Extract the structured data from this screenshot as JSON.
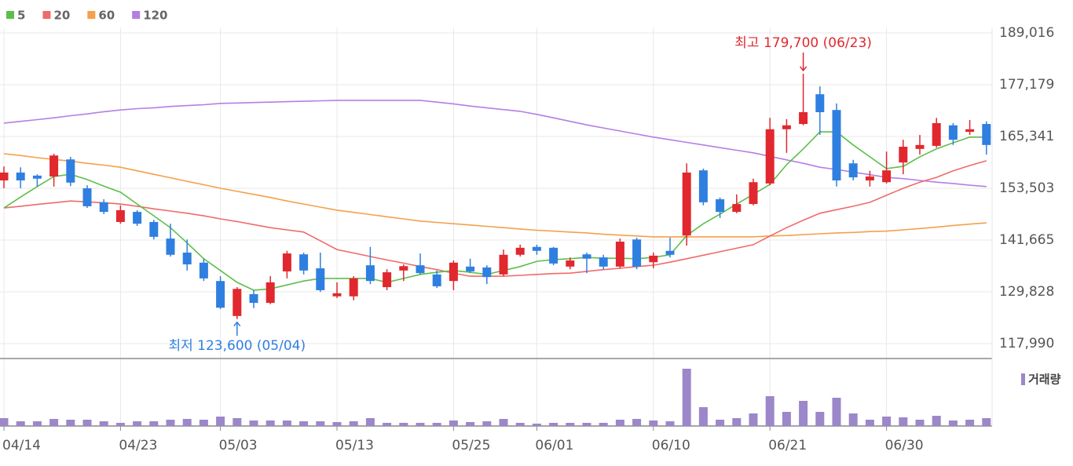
{
  "chart_data": {
    "type": "candlestick",
    "categories": [
      "04/14",
      null,
      null,
      null,
      null,
      null,
      null,
      "04/23",
      null,
      null,
      null,
      null,
      null,
      "05/03",
      null,
      null,
      null,
      null,
      null,
      null,
      "05/13",
      null,
      null,
      null,
      null,
      null,
      null,
      "05/25",
      null,
      null,
      null,
      null,
      "06/01",
      null,
      null,
      null,
      null,
      null,
      null,
      "06/10",
      null,
      null,
      null,
      null,
      null,
      null,
      "06/21",
      null,
      null,
      null,
      null,
      null,
      null,
      "06/30",
      null,
      null,
      null,
      null,
      null,
      null
    ],
    "open": [
      155300,
      157100,
      156400,
      156200,
      160100,
      153500,
      150300,
      145800,
      148100,
      145800,
      142000,
      138800,
      136500,
      132300,
      124300,
      129300,
      127300,
      134500,
      138400,
      135200,
      128800,
      128800,
      135900,
      130900,
      134700,
      135900,
      133800,
      132300,
      135600,
      135400,
      133800,
      138300,
      140100,
      139900,
      135600,
      138400,
      137700,
      135600,
      141800,
      136600,
      139200,
      142700,
      157600,
      151000,
      148100,
      149900,
      154600,
      167000,
      168200,
      175000,
      171400,
      159200,
      155300,
      154900,
      159400,
      162500,
      163200,
      167900,
      166400,
      168200
    ],
    "high": [
      158500,
      158300,
      156700,
      161400,
      160700,
      154200,
      151000,
      149600,
      148500,
      146300,
      145400,
      141800,
      137400,
      133400,
      130900,
      130200,
      133400,
      139200,
      138800,
      138800,
      132000,
      133400,
      140100,
      135000,
      136100,
      138600,
      134700,
      137000,
      137400,
      135900,
      139500,
      140600,
      140600,
      140100,
      137700,
      138800,
      138300,
      142000,
      142200,
      138800,
      142200,
      159200,
      158000,
      151400,
      152100,
      155700,
      169600,
      169300,
      179700,
      176800,
      172900,
      160000,
      157500,
      161900,
      164600,
      165700,
      169600,
      168400,
      169100,
      168800
    ],
    "low": [
      153500,
      153500,
      153900,
      153900,
      154000,
      149000,
      147600,
      145400,
      144900,
      141800,
      137900,
      134700,
      132300,
      125900,
      123600,
      126100,
      127000,
      132900,
      133800,
      129800,
      128400,
      127900,
      131600,
      130200,
      132300,
      133800,
      130700,
      130200,
      134100,
      131600,
      133400,
      137900,
      138300,
      135900,
      135000,
      134100,
      135000,
      135200,
      135000,
      135200,
      137700,
      140400,
      149600,
      146700,
      147800,
      149600,
      154200,
      161600,
      167900,
      165700,
      153900,
      155300,
      153900,
      154600,
      156700,
      161200,
      162800,
      163400,
      165700,
      161200
    ],
    "close": [
      157100,
      155300,
      155700,
      161000,
      154800,
      149400,
      148100,
      148500,
      145400,
      142400,
      138300,
      136100,
      132900,
      126200,
      130500,
      127300,
      132000,
      138600,
      134700,
      130200,
      129500,
      132900,
      132300,
      134300,
      135700,
      134100,
      131100,
      136500,
      134500,
      133200,
      138300,
      139900,
      139200,
      136300,
      137000,
      137400,
      135600,
      141300,
      135600,
      138100,
      138300,
      157100,
      150300,
      148100,
      149900,
      154900,
      167000,
      167900,
      170900,
      170900,
      155300,
      156000,
      156200,
      157600,
      163000,
      163400,
      168400,
      164600,
      167000,
      163400
    ],
    "up_color": "#e0282e",
    "down_color": "#2f7fe0",
    "series": [
      {
        "name": "5",
        "color": "#5cbf4a",
        "values": [
          149000,
          151500,
          153900,
          156200,
          156700,
          155500,
          154000,
          152600,
          149900,
          147200,
          144500,
          141000,
          137400,
          134700,
          132000,
          130200,
          130500,
          131400,
          132300,
          132900,
          132900,
          132900,
          132900,
          132000,
          132900,
          133800,
          134300,
          134700,
          134300,
          133800,
          134700,
          135600,
          136800,
          137200,
          137400,
          137700,
          137500,
          137500,
          137400,
          137700,
          138300,
          142700,
          145400,
          147600,
          149900,
          152100,
          154400,
          158900,
          162500,
          166400,
          166400,
          163400,
          160700,
          158000,
          158500,
          160700,
          162500,
          163900,
          165200,
          165200
        ]
      },
      {
        "name": "20",
        "color": "#f06a6a",
        "values": [
          149000,
          149400,
          149800,
          150200,
          150600,
          150400,
          150200,
          149900,
          149400,
          148800,
          148300,
          147800,
          147200,
          146500,
          145900,
          145200,
          144500,
          144000,
          143500,
          141500,
          139500,
          138700,
          137900,
          137100,
          136400,
          135600,
          134900,
          134100,
          133400,
          133400,
          133400,
          133600,
          133800,
          134000,
          134100,
          134500,
          134900,
          135200,
          135600,
          135900,
          136600,
          137400,
          138200,
          139000,
          139800,
          140600,
          142600,
          144500,
          146200,
          147800,
          148600,
          149400,
          150300,
          151900,
          153500,
          154900,
          156000,
          157500,
          158700,
          159800
        ]
      },
      {
        "name": "60",
        "color": "#f5a04a",
        "values": [
          161400,
          161000,
          160500,
          160100,
          159700,
          159200,
          158800,
          158300,
          157500,
          156700,
          155900,
          155100,
          154300,
          153500,
          152800,
          152100,
          151400,
          150600,
          149900,
          149200,
          148500,
          148000,
          147500,
          147000,
          146500,
          146000,
          145700,
          145400,
          145100,
          144800,
          144500,
          144200,
          143900,
          143700,
          143500,
          143300,
          143000,
          142800,
          142600,
          142400,
          142400,
          142400,
          142400,
          142400,
          142400,
          142400,
          142600,
          142700,
          142900,
          143100,
          143300,
          143400,
          143600,
          143700,
          144000,
          144300,
          144600,
          145000,
          145300,
          145600
        ]
      },
      {
        "name": "120",
        "color": "#b47fe3",
        "values": [
          168400,
          168800,
          169200,
          169600,
          170100,
          170500,
          171000,
          171400,
          171700,
          171900,
          172200,
          172400,
          172600,
          172900,
          173000,
          173100,
          173200,
          173300,
          173400,
          173500,
          173600,
          173600,
          173600,
          173600,
          173600,
          173600,
          173200,
          172800,
          172300,
          171900,
          171500,
          171100,
          170400,
          169600,
          168800,
          168000,
          167300,
          166600,
          165900,
          165200,
          164600,
          164000,
          163400,
          162800,
          162200,
          161600,
          160800,
          160000,
          159200,
          158300,
          157800,
          157200,
          156600,
          156000,
          155700,
          155300,
          154900,
          154600,
          154200,
          153900
        ]
      }
    ],
    "ylim": [
      114940,
      190270
    ],
    "yticks": [
      {
        "value": 189016,
        "label": "189,016"
      },
      {
        "value": 177179,
        "label": "177,179"
      },
      {
        "value": 165341,
        "label": "165,341"
      },
      {
        "value": 153503,
        "label": "153,503"
      },
      {
        "value": 141665,
        "label": "141,665"
      },
      {
        "value": 129828,
        "label": "129,828"
      },
      {
        "value": 117990,
        "label": "117,990"
      }
    ],
    "grid": true,
    "high_label": {
      "text": "최고 179,700 (06/23)",
      "color": "#e0282e"
    },
    "low_label": {
      "text": "최저 123,600 (05/04)",
      "color": "#2f7fe0"
    },
    "volume": {
      "name": "거래량",
      "color": "#9b87c9",
      "ylim": [
        0,
        75
      ],
      "values": [
        10,
        6,
        6,
        9,
        8,
        8,
        6,
        4,
        6,
        6,
        8,
        9,
        8,
        12,
        10,
        7,
        7,
        7,
        6,
        6,
        5,
        6,
        10,
        4,
        4,
        4,
        4,
        7,
        5,
        6,
        9,
        4,
        3,
        4,
        4,
        4,
        4,
        8,
        9,
        7,
        6,
        73,
        24,
        8,
        10,
        16,
        38,
        18,
        32,
        18,
        36,
        16,
        8,
        12,
        11,
        8,
        13,
        7,
        8,
        10
      ]
    }
  }
}
